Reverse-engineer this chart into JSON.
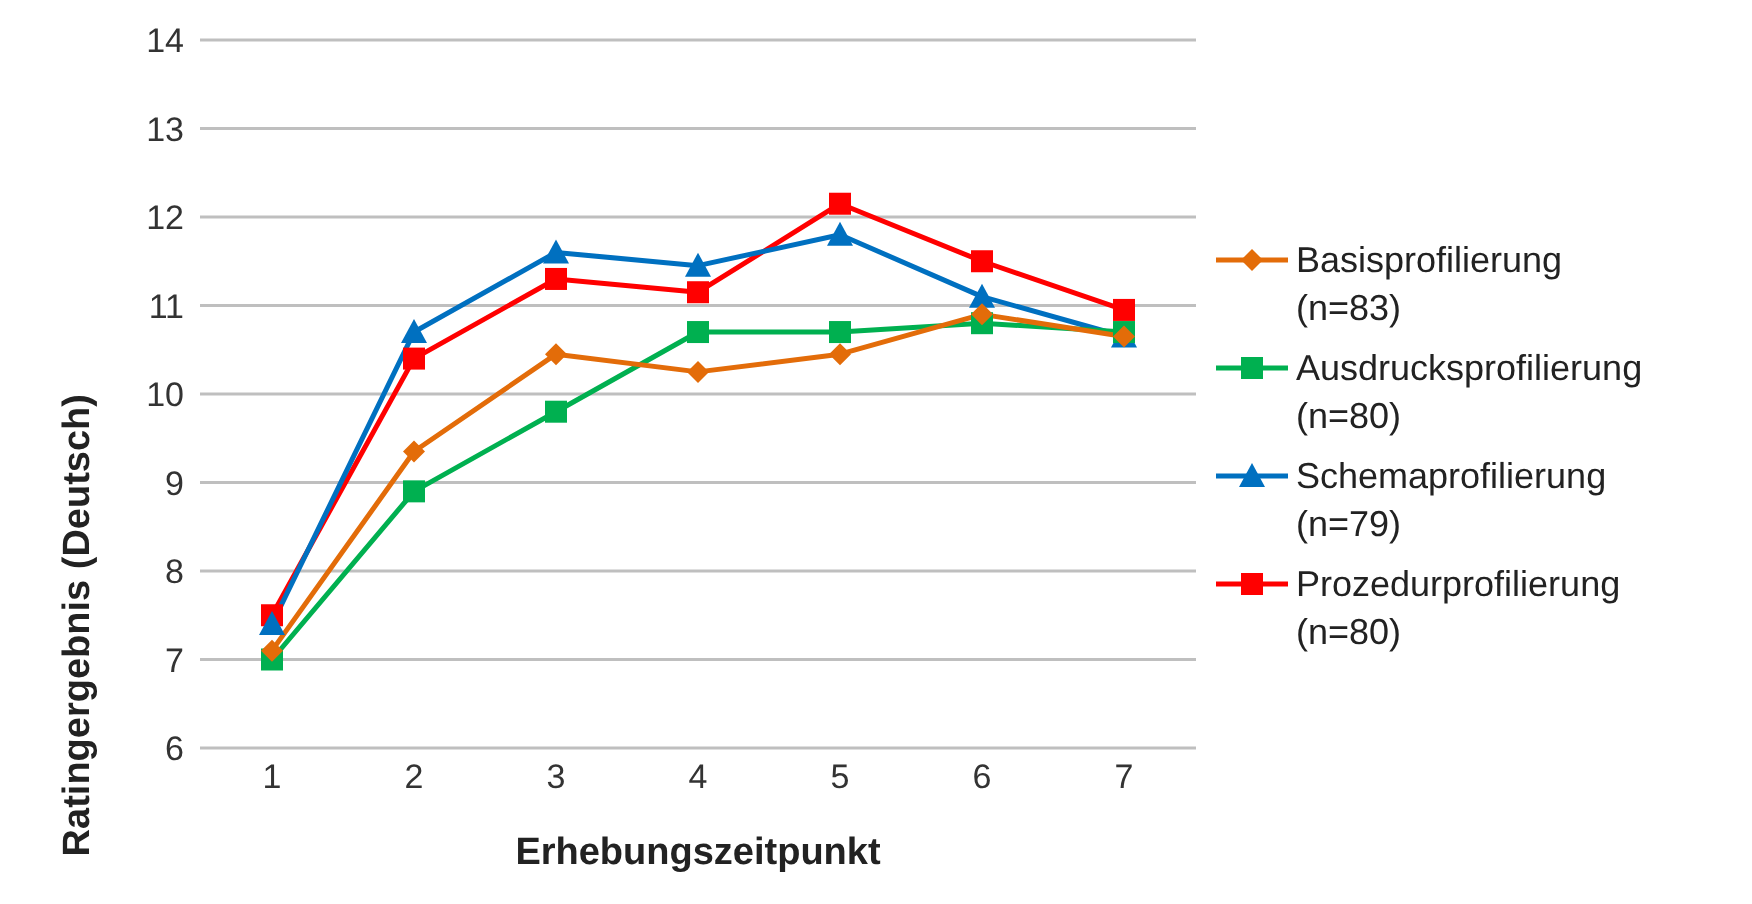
{
  "chart_data": {
    "type": "line",
    "xlabel": "Erhebungszeitpunkt",
    "ylabel": "Ratingergebnis (Deutsch)",
    "categories": [
      "1",
      "2",
      "3",
      "4",
      "5",
      "6",
      "7"
    ],
    "series": [
      {
        "name": "Basisprofilierung (n=83)",
        "color": "#e36c09",
        "marker": "diamond",
        "values": [
          7.1,
          9.35,
          10.45,
          10.25,
          10.45,
          10.9,
          10.65
        ]
      },
      {
        "name": "Ausdrucksprofilierung (n=80)",
        "color": "#00b050",
        "marker": "square",
        "values": [
          7.0,
          8.9,
          9.8,
          10.7,
          10.7,
          10.8,
          10.7
        ]
      },
      {
        "name": "Schemaprofilierung (n=79)",
        "color": "#0070c0",
        "marker": "triangle",
        "values": [
          7.4,
          10.7,
          11.6,
          11.45,
          11.8,
          11.1,
          10.65
        ]
      },
      {
        "name": "Prozedurprofilierung (n=80)",
        "color": "#ff0000",
        "marker": "square",
        "values": [
          7.5,
          10.4,
          11.3,
          11.15,
          12.15,
          11.5,
          10.95
        ]
      }
    ],
    "ylim": [
      6,
      14
    ],
    "yticks": [
      6,
      7,
      8,
      9,
      10,
      11,
      12,
      13,
      14
    ],
    "grid": "y",
    "legend": "right",
    "line_style": "solid"
  }
}
